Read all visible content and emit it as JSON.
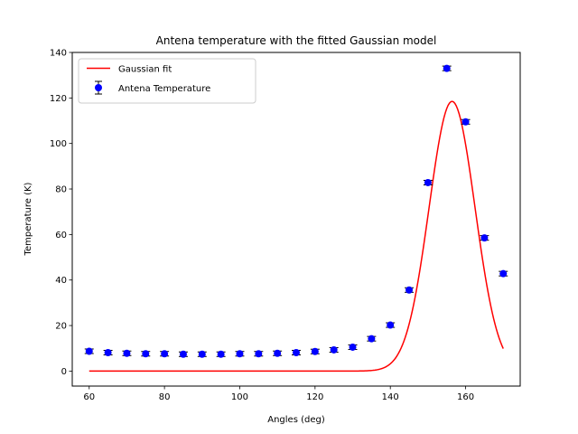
{
  "chart_data": {
    "type": "scatter",
    "title": "Antena temperature with the fitted Gaussian model",
    "xlabel": "Angles (deg)",
    "ylabel": "Temperature (K)",
    "xlim": [
      55.5,
      174.5
    ],
    "ylim": [
      -6.6,
      140
    ],
    "xticks": [
      60,
      80,
      100,
      120,
      140,
      160
    ],
    "yticks": [
      0,
      20,
      40,
      60,
      80,
      100,
      120,
      140
    ],
    "grid": false,
    "legend_position": "upper-left",
    "legend": [
      "Gaussian fit",
      "Antena Temperature"
    ],
    "series": [
      {
        "name": "Antena Temperature",
        "type": "errorbar",
        "color": "#0000ff",
        "x": [
          60,
          65,
          70,
          75,
          80,
          85,
          90,
          95,
          100,
          105,
          110,
          115,
          120,
          125,
          130,
          135,
          140,
          145,
          150,
          155,
          160,
          165,
          170
        ],
        "y": [
          8.7,
          8.1,
          7.8,
          7.6,
          7.6,
          7.4,
          7.4,
          7.4,
          7.6,
          7.6,
          7.8,
          8.1,
          8.6,
          9.3,
          10.5,
          14.2,
          20.2,
          35.6,
          82.8,
          133.0,
          109.5,
          58.5,
          42.8
        ],
        "yerr": [
          1.0,
          1.0,
          1.0,
          1.0,
          1.0,
          1.0,
          1.0,
          1.0,
          1.0,
          1.0,
          1.0,
          1.0,
          1.0,
          1.0,
          1.0,
          1.0,
          1.0,
          1.0,
          1.0,
          1.0,
          1.0,
          1.0,
          1.0
        ]
      },
      {
        "name": "Gaussian fit",
        "type": "line",
        "color": "#ff0000",
        "model": "gaussian",
        "amplitude": 118.5,
        "center": 156.4,
        "sigma": 6.1,
        "offset": 0,
        "x_range": [
          60,
          170
        ]
      }
    ]
  }
}
